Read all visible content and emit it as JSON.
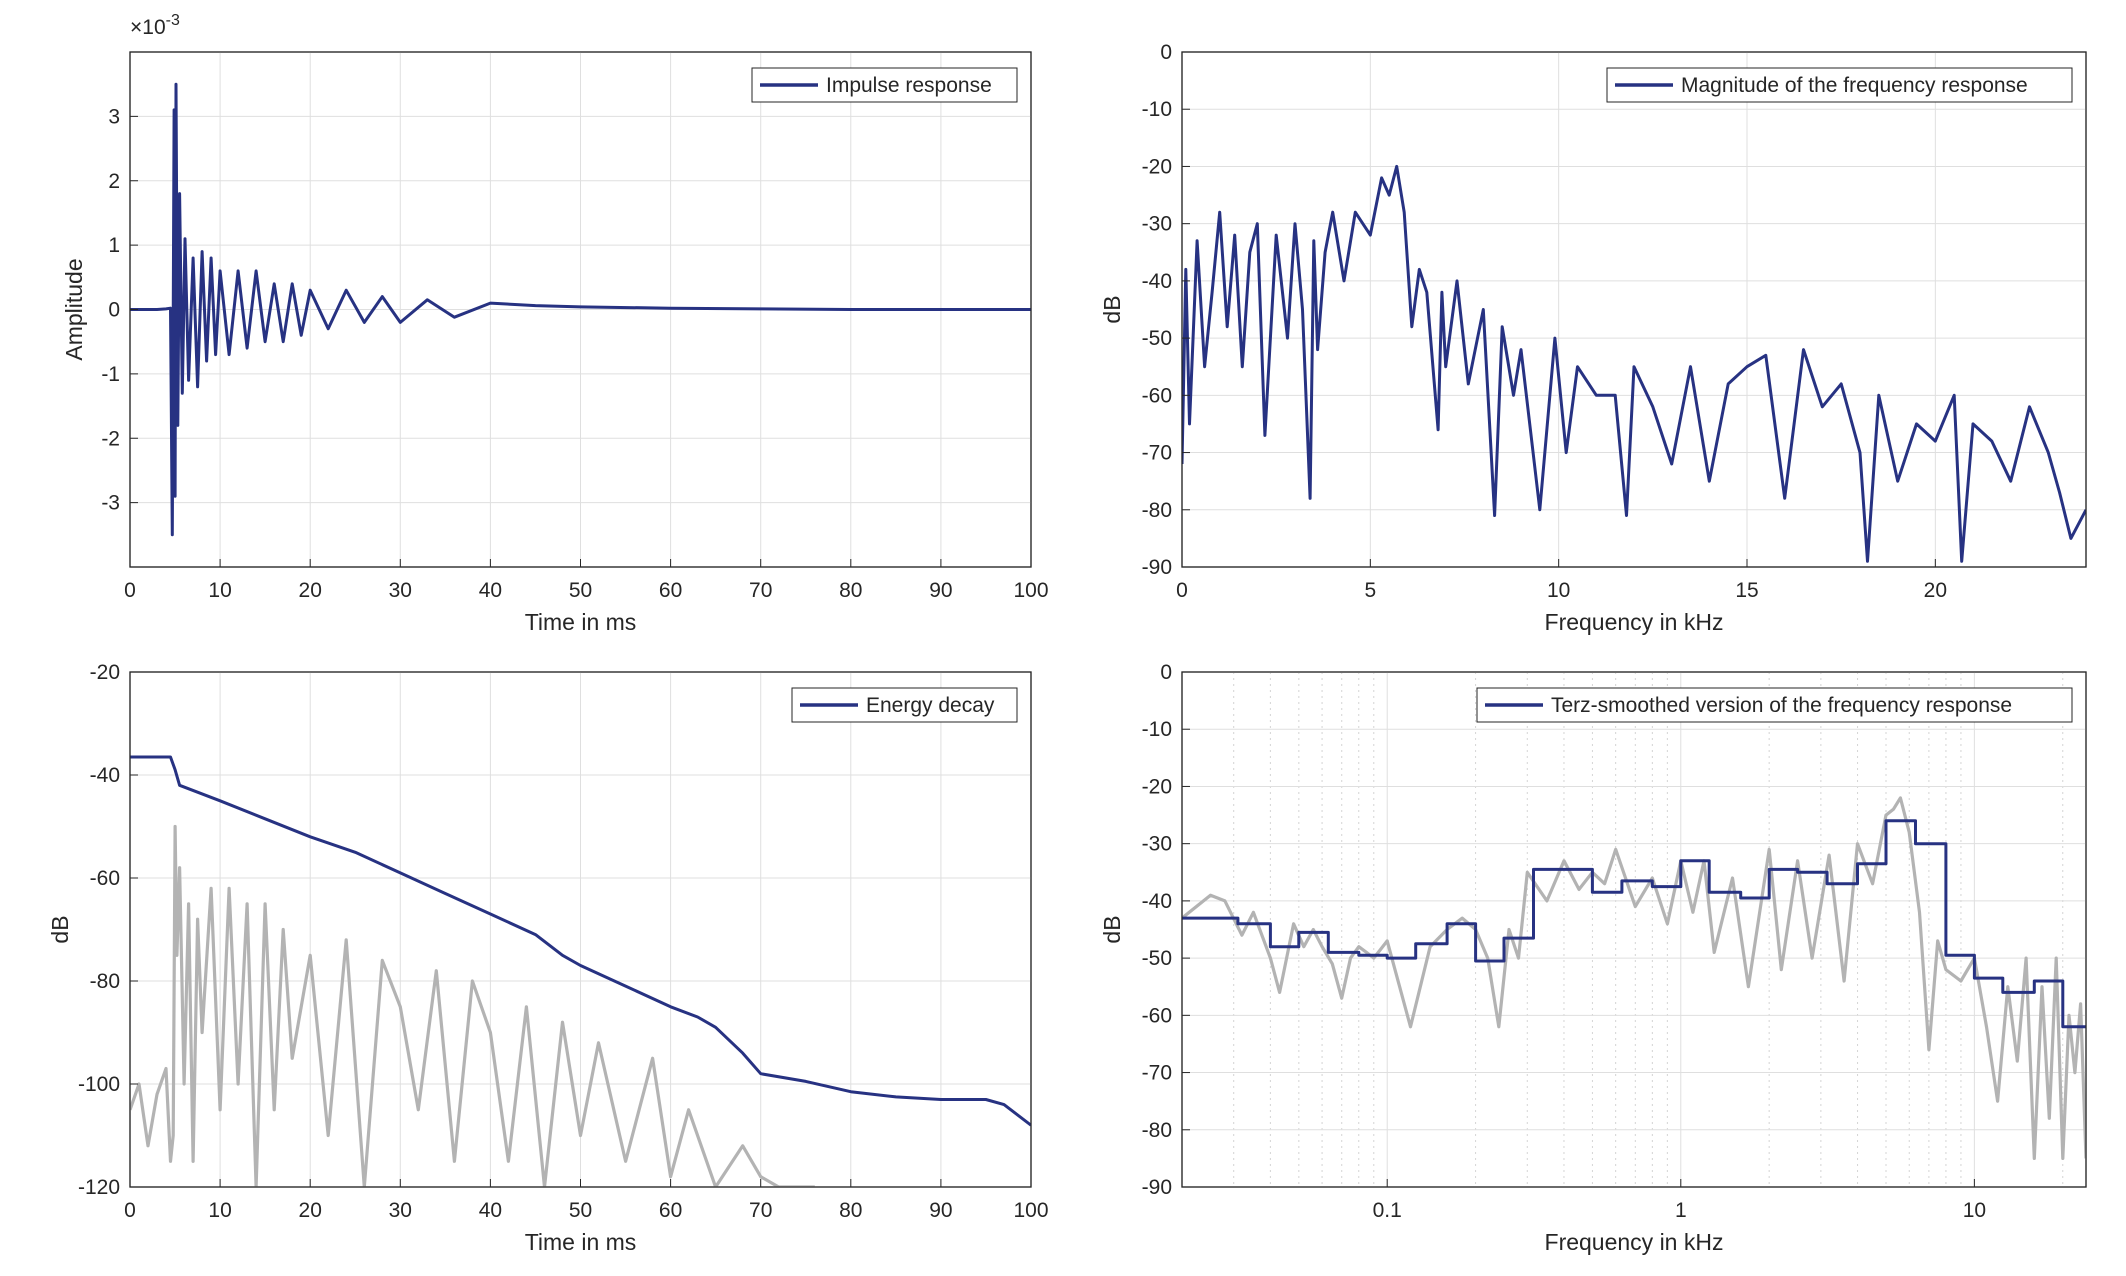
{
  "colors": {
    "primary": "#273282",
    "secondary": "#b3b3b3",
    "axis": "#262626",
    "grid": "#dfdfdf"
  },
  "chart_data": [
    {
      "id": "impulse",
      "type": "line",
      "xscale": "linear",
      "xlim": [
        0,
        100
      ],
      "ylim": [
        -0.004,
        0.004
      ],
      "xticks": [
        0,
        10,
        20,
        30,
        40,
        50,
        60,
        70,
        80,
        90,
        100
      ],
      "xtick_labels": [
        "0",
        "10",
        "20",
        "30",
        "40",
        "50",
        "60",
        "70",
        "80",
        "90",
        "100"
      ],
      "yticks": [
        -0.003,
        -0.002,
        -0.001,
        0,
        0.001,
        0.002,
        0.003
      ],
      "ytick_labels": [
        "-3",
        "-2",
        "-1",
        "0",
        "1",
        "2",
        "3"
      ],
      "exponent_label": "×10",
      "exponent_power": "-3",
      "xlabel": "Time in ms",
      "ylabel": "Amplitude",
      "grid": true,
      "legend_position": "top-right",
      "series": [
        {
          "name": "Impulse response",
          "color": "#273282",
          "x": [
            0,
            1,
            2,
            3,
            4,
            4.5,
            4.7,
            4.9,
            5.0,
            5.1,
            5.3,
            5.5,
            5.8,
            6.1,
            6.5,
            7,
            7.5,
            8,
            8.5,
            9,
            9.5,
            10,
            11,
            12,
            13,
            14,
            15,
            16,
            17,
            18,
            19,
            20,
            22,
            24,
            26,
            28,
            30,
            33,
            36,
            40,
            45,
            50,
            60,
            70,
            80,
            90,
            100
          ],
          "y": [
            0,
            0,
            0,
            0,
            1e-05,
            2e-05,
            -0.0035,
            0.0031,
            -0.0029,
            0.0035,
            -0.0018,
            0.0018,
            -0.0013,
            0.0011,
            -0.0011,
            0.0008,
            -0.0012,
            0.0009,
            -0.0008,
            0.0008,
            -0.0007,
            0.0006,
            -0.0007,
            0.0006,
            -0.0006,
            0.0006,
            -0.0005,
            0.0004,
            -0.0005,
            0.0004,
            -0.0004,
            0.0003,
            -0.0003,
            0.0003,
            -0.0002,
            0.0002,
            -0.0002,
            0.00015,
            -0.00012,
            0.0001,
            6e-05,
            4e-05,
            2e-05,
            1e-05,
            0,
            0,
            0
          ]
        }
      ]
    },
    {
      "id": "magnitude",
      "type": "line",
      "xscale": "linear",
      "xlim": [
        0,
        24
      ],
      "ylim": [
        -90,
        0
      ],
      "xticks": [
        0,
        5,
        10,
        15,
        20
      ],
      "xtick_labels": [
        "0",
        "5",
        "10",
        "15",
        "20"
      ],
      "yticks": [
        0,
        -10,
        -20,
        -30,
        -40,
        -50,
        -60,
        -70,
        -80,
        -90
      ],
      "ytick_labels": [
        "0",
        "-10",
        "-20",
        "-30",
        "-40",
        "-50",
        "-60",
        "-70",
        "-80",
        "-90"
      ],
      "xlabel": "Frequency in kHz",
      "ylabel": "dB",
      "grid": true,
      "legend_position": "top-right",
      "series": [
        {
          "name": "Magnitude of the frequency response",
          "color": "#273282",
          "x": [
            0,
            0.1,
            0.2,
            0.4,
            0.6,
            0.8,
            1.0,
            1.2,
            1.4,
            1.6,
            1.8,
            2.0,
            2.2,
            2.5,
            2.8,
            3.0,
            3.2,
            3.4,
            3.5,
            3.6,
            3.8,
            4.0,
            4.3,
            4.6,
            5.0,
            5.3,
            5.5,
            5.7,
            5.9,
            6.1,
            6.3,
            6.5,
            6.8,
            6.9,
            7.0,
            7.3,
            7.6,
            8.0,
            8.3,
            8.5,
            8.8,
            9.0,
            9.5,
            9.9,
            10.2,
            10.5,
            11.0,
            11.5,
            11.8,
            12.0,
            12.5,
            13.0,
            13.5,
            14.0,
            14.5,
            15.0,
            15.5,
            16.0,
            16.5,
            17.0,
            17.5,
            18.0,
            18.2,
            18.5,
            19.0,
            19.5,
            20.0,
            20.5,
            20.7,
            21.0,
            21.5,
            22.0,
            22.5,
            23.0,
            23.3,
            23.6,
            24.0
          ],
          "y": [
            -72,
            -38,
            -65,
            -33,
            -55,
            -42,
            -28,
            -48,
            -32,
            -55,
            -35,
            -30,
            -67,
            -32,
            -50,
            -30,
            -45,
            -78,
            -33,
            -52,
            -35,
            -28,
            -40,
            -28,
            -32,
            -22,
            -25,
            -20,
            -28,
            -48,
            -38,
            -42,
            -66,
            -42,
            -55,
            -40,
            -58,
            -45,
            -81,
            -48,
            -60,
            -52,
            -80,
            -50,
            -70,
            -55,
            -60,
            -60,
            -81,
            -55,
            -62,
            -72,
            -55,
            -75,
            -58,
            -55,
            -53,
            -78,
            -52,
            -62,
            -58,
            -70,
            -89,
            -60,
            -75,
            -65,
            -68,
            -60,
            -89,
            -65,
            -68,
            -75,
            -62,
            -70,
            -77,
            -85,
            -80
          ]
        }
      ]
    },
    {
      "id": "energy",
      "type": "line",
      "xscale": "linear",
      "xlim": [
        0,
        100
      ],
      "ylim": [
        -120,
        -20
      ],
      "xticks": [
        0,
        10,
        20,
        30,
        40,
        50,
        60,
        70,
        80,
        90,
        100
      ],
      "xtick_labels": [
        "0",
        "10",
        "20",
        "30",
        "40",
        "50",
        "60",
        "70",
        "80",
        "90",
        "100"
      ],
      "yticks": [
        -20,
        -40,
        -60,
        -80,
        -100,
        -120
      ],
      "ytick_labels": [
        "-20",
        "-40",
        "-60",
        "-80",
        "-100",
        "-120"
      ],
      "xlabel": "Time in ms",
      "ylabel": "dB",
      "grid": true,
      "legend_position": "top-right",
      "series": [
        {
          "name": "Energy decay",
          "color": "#273282",
          "x": [
            0,
            4.5,
            5.0,
            5.5,
            10,
            15,
            20,
            25,
            30,
            35,
            40,
            45,
            48,
            50,
            55,
            60,
            63,
            65,
            68,
            70,
            75,
            80,
            85,
            90,
            95,
            97,
            100
          ],
          "y": [
            -36.5,
            -36.5,
            -39,
            -42,
            -45,
            -48.5,
            -52,
            -55,
            -59,
            -63,
            -67,
            -71,
            -75,
            -77,
            -81,
            -85,
            -87,
            -89,
            -94,
            -98,
            -99.5,
            -101.5,
            -102.5,
            -103,
            -103,
            -104,
            -108
          ]
        },
        {
          "name": "",
          "color": "#b3b3b3",
          "x": [
            0,
            1,
            2,
            3,
            4,
            4.5,
            4.8,
            5.0,
            5.2,
            5.5,
            6,
            6.5,
            7,
            7.5,
            8,
            9,
            10,
            11,
            12,
            13,
            14,
            15,
            16,
            17,
            18,
            20,
            22,
            24,
            26,
            28,
            30,
            32,
            34,
            36,
            38,
            40,
            42,
            44,
            46,
            48,
            50,
            52,
            55,
            58,
            60,
            62,
            65,
            68,
            70,
            72,
            75,
            76
          ],
          "y": [
            -105,
            -100,
            -112,
            -102,
            -97,
            -115,
            -110,
            -50,
            -75,
            -58,
            -100,
            -65,
            -115,
            -68,
            -90,
            -62,
            -105,
            -62,
            -100,
            -65,
            -120,
            -65,
            -105,
            -70,
            -95,
            -75,
            -110,
            -72,
            -120,
            -76,
            -85,
            -105,
            -78,
            -115,
            -80,
            -90,
            -115,
            -85,
            -120,
            -88,
            -110,
            -92,
            -115,
            -95,
            -118,
            -105,
            -120,
            -112,
            -118,
            -120,
            -120,
            -120
          ]
        }
      ]
    },
    {
      "id": "terz",
      "type": "line",
      "xscale": "log",
      "xlim": [
        0.02,
        24
      ],
      "ylim": [
        -90,
        0
      ],
      "xticks": [
        0.1,
        1,
        10
      ],
      "xtick_labels": [
        "0.1",
        "1",
        "10"
      ],
      "yticks": [
        0,
        -10,
        -20,
        -30,
        -40,
        -50,
        -60,
        -70,
        -80,
        -90
      ],
      "ytick_labels": [
        "0",
        "-10",
        "-20",
        "-30",
        "-40",
        "-50",
        "-60",
        "-70",
        "-80",
        "-90"
      ],
      "xlabel": "Frequency in kHz",
      "ylabel": "dB",
      "grid": true,
      "legend_position": "top-right",
      "series": [
        {
          "name": "Terz-smoothed version of the frequency response",
          "color": "#273282",
          "x": [
            0.02,
            0.031,
            0.031,
            0.04,
            0.04,
            0.05,
            0.05,
            0.063,
            0.063,
            0.08,
            0.08,
            0.1,
            0.1,
            0.125,
            0.125,
            0.16,
            0.16,
            0.2,
            0.2,
            0.25,
            0.25,
            0.315,
            0.315,
            0.4,
            0.4,
            0.5,
            0.5,
            0.63,
            0.63,
            0.8,
            0.8,
            1.0,
            1.0,
            1.25,
            1.25,
            1.6,
            1.6,
            2.0,
            2.0,
            2.5,
            2.5,
            3.15,
            3.15,
            4.0,
            4.0,
            5.0,
            5.0,
            6.3,
            6.3,
            8.0,
            8.0,
            10,
            10,
            12.5,
            12.5,
            16,
            16,
            20,
            20,
            24
          ],
          "y": [
            -43,
            -43,
            -44,
            -44,
            -48,
            -48,
            -45.5,
            -45.5,
            -49,
            -49,
            -49.5,
            -49.5,
            -50,
            -50,
            -47.5,
            -47.5,
            -44,
            -44,
            -50.5,
            -50.5,
            -46.5,
            -46.5,
            -34.5,
            -34.5,
            -34.5,
            -34.5,
            -38.5,
            -38.5,
            -36.5,
            -36.5,
            -37.5,
            -37.5,
            -33,
            -33,
            -38.5,
            -38.5,
            -39.5,
            -39.5,
            -34.5,
            -34.5,
            -35,
            -35,
            -37,
            -37,
            -33.5,
            -33.5,
            -26,
            -26,
            -30,
            -30,
            -49.5,
            -49.5,
            -53.5,
            -53.5,
            -56,
            -56,
            -54,
            -54,
            -62,
            -62
          ]
        },
        {
          "name": "",
          "color": "#b3b3b3",
          "x": [
            0.02,
            0.025,
            0.028,
            0.032,
            0.035,
            0.04,
            0.043,
            0.048,
            0.052,
            0.056,
            0.06,
            0.065,
            0.07,
            0.075,
            0.08,
            0.085,
            0.09,
            0.1,
            0.12,
            0.14,
            0.16,
            0.18,
            0.2,
            0.22,
            0.24,
            0.26,
            0.28,
            0.3,
            0.35,
            0.4,
            0.45,
            0.5,
            0.55,
            0.6,
            0.7,
            0.8,
            0.9,
            1.0,
            1.1,
            1.2,
            1.3,
            1.5,
            1.7,
            2.0,
            2.2,
            2.5,
            2.8,
            3.2,
            3.6,
            4.0,
            4.5,
            5.0,
            5.3,
            5.6,
            6.0,
            6.5,
            7.0,
            7.5,
            8.0,
            9.0,
            10,
            11,
            12,
            13,
            14,
            15,
            16,
            17,
            18,
            19,
            20,
            21,
            22,
            23,
            24
          ],
          "y": [
            -43,
            -39,
            -40,
            -46,
            -42,
            -50,
            -56,
            -44,
            -48,
            -45,
            -48,
            -51,
            -57,
            -50,
            -48,
            -49,
            -50,
            -47,
            -62,
            -48,
            -45,
            -43,
            -45,
            -50,
            -62,
            -45,
            -50,
            -35,
            -40,
            -33,
            -38,
            -35,
            -37,
            -31,
            -41,
            -36,
            -44,
            -33,
            -42,
            -33,
            -49,
            -36,
            -55,
            -31,
            -52,
            -33,
            -50,
            -32,
            -54,
            -30,
            -37,
            -25,
            -24,
            -22,
            -28,
            -42,
            -66,
            -47,
            -52,
            -54,
            -50,
            -62,
            -75,
            -55,
            -68,
            -50,
            -85,
            -55,
            -78,
            -50,
            -85,
            -60,
            -70,
            -58,
            -85
          ]
        }
      ]
    }
  ]
}
